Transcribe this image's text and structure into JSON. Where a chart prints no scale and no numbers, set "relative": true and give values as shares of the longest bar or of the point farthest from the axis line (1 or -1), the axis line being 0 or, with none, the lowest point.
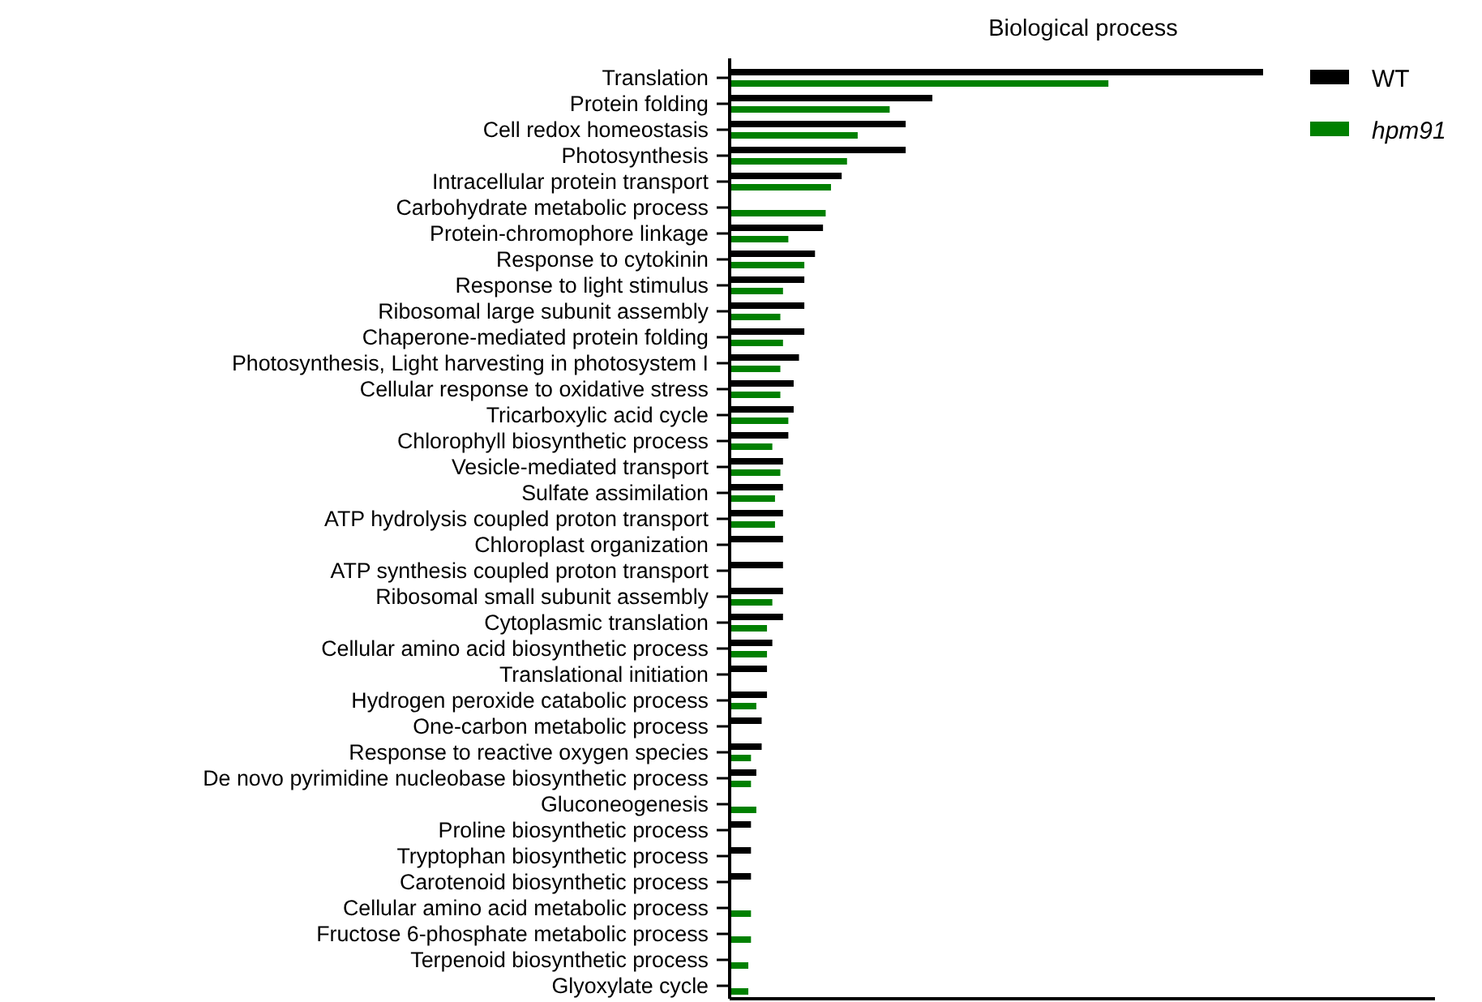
{
  "chart_data": {
    "type": "bar",
    "orientation": "horizontal",
    "relative": true,
    "title": "Biological process",
    "categories": [
      "Translation",
      "Protein folding",
      "Cell redox homeostasis",
      "Photosynthesis",
      "Intracellular protein transport",
      "Carbohydrate metabolic process",
      "Protein-chromophore linkage",
      "Response to cytokinin",
      "Response to light stimulus",
      "Ribosomal large subunit assembly",
      "Chaperone-mediated protein folding",
      "Photosynthesis, Light harvesting in photosystem I",
      "Cellular response to oxidative stress",
      "Tricarboxylic acid cycle",
      "Chlorophyll biosynthetic process",
      "Vesicle-mediated transport",
      "Sulfate assimilation",
      "ATP hydrolysis coupled proton transport",
      "Chloroplast organization",
      "ATP synthesis coupled proton transport",
      "Ribosomal small subunit assembly",
      "Cytoplasmic translation",
      "Cellular amino acid biosynthetic process",
      "Translational initiation",
      "Hydrogen peroxide catabolic process",
      "One-carbon metabolic process",
      "Response to reactive oxygen species",
      "De novo pyrimidine nucleobase biosynthetic process",
      "Gluconeogenesis",
      "Proline biosynthetic process",
      "Tryptophan biosynthetic process",
      "Carotenoid biosynthetic process",
      "Cellular amino acid metabolic process",
      "Fructose 6-phosphate metabolic process",
      "Terpenoid biosynthetic process",
      "Glyoxylate cycle"
    ],
    "series": [
      {
        "name": "WT",
        "color": "#000000",
        "values": [
          1,
          0.38,
          0.33,
          0.33,
          0.21,
          null,
          0.175,
          0.16,
          0.14,
          0.14,
          0.14,
          0.13,
          0.12,
          0.12,
          0.11,
          0.1,
          0.1,
          0.1,
          0.1,
          0.1,
          0.1,
          0.1,
          0.08,
          0.07,
          0.07,
          0.06,
          0.06,
          0.05,
          null,
          0.04,
          0.04,
          0.04,
          null,
          null,
          null,
          null
        ]
      },
      {
        "name": "hpm91",
        "color": "#008000",
        "values": [
          0.71,
          0.3,
          0.24,
          0.22,
          0.19,
          0.18,
          0.11,
          0.14,
          0.1,
          0.095,
          0.1,
          0.095,
          0.095,
          0.11,
          0.08,
          0.095,
          0.085,
          0.085,
          null,
          null,
          0.08,
          0.07,
          0.07,
          null,
          0.05,
          null,
          0.04,
          0.04,
          0.05,
          null,
          null,
          null,
          0.04,
          0.04,
          0.035,
          0.035
        ]
      }
    ],
    "legend": "top right"
  }
}
